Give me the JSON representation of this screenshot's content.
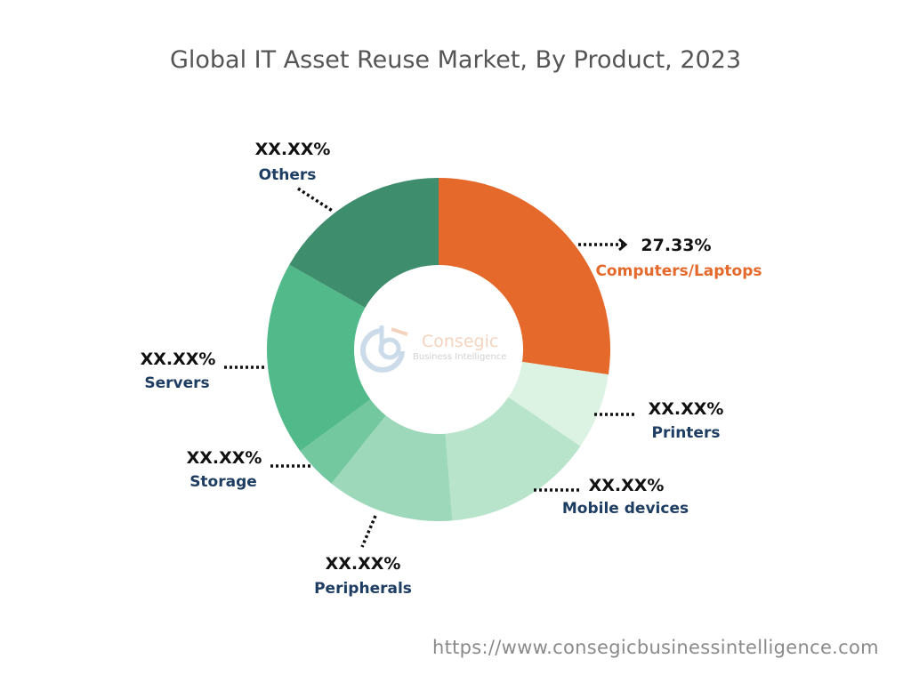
{
  "chart_data": {
    "type": "pie",
    "variant": "donut",
    "title": "Global IT Asset Reuse Market, By Product, 2023",
    "categories": [
      "Computers/Laptops",
      "Printers",
      "Mobile devices",
      "Peripherals",
      "Storage",
      "Servers",
      "Others"
    ],
    "values": [
      27.33,
      7.2,
      14.2,
      12.0,
      4.2,
      18.3,
      16.77
    ],
    "value_labels": [
      "27.33%",
      "XX.XX%",
      "XX.XX%",
      "XX.XX%",
      "XX.XX%",
      "XX.XX%",
      "XX.XX%"
    ],
    "colors": [
      "#E5692A",
      "#DCF3E3",
      "#B9E4CC",
      "#9ED8BB",
      "#73C8A0",
      "#52B98A",
      "#3E8D6C"
    ],
    "label_colors": [
      "#E5692A",
      "#1E3D62",
      "#1E3D62",
      "#1E3D62",
      "#1E3D62",
      "#1E3D62",
      "#1E3D62"
    ],
    "legend": "none"
  },
  "watermark": {
    "name": "Consegic",
    "tagline": "Business Intelligence"
  },
  "footer": {
    "url": "https://www.consegicbusinessintelligence.com"
  }
}
